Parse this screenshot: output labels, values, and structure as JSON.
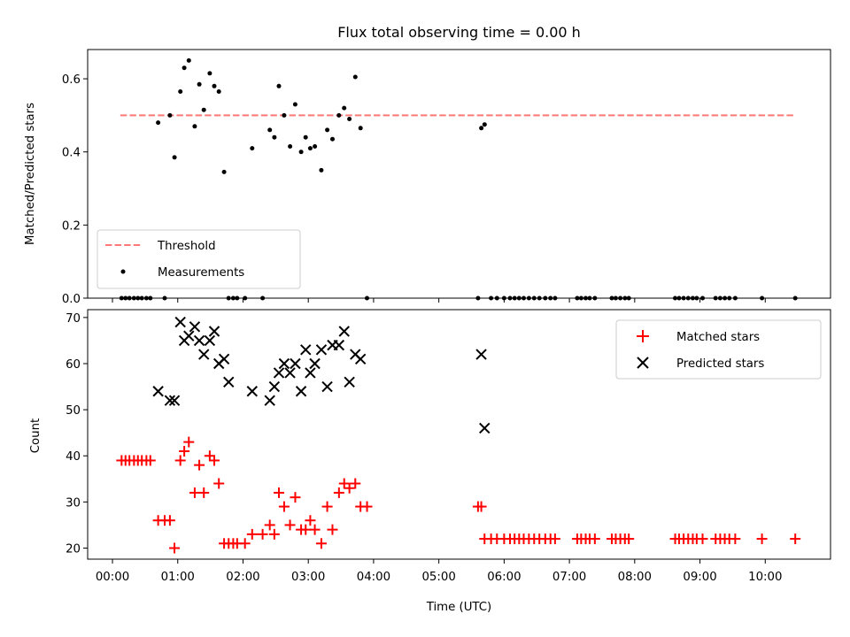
{
  "chart_data": [
    {
      "type": "scatter",
      "title": "Flux total observing time = 0.00 h",
      "xlabel": "",
      "ylabel": "Matched/Predicted stars",
      "xlim": [
        -0.38,
        11.0
      ],
      "ylim": [
        0.0,
        0.68
      ],
      "yticks": [
        "0.0",
        "0.2",
        "0.4",
        "0.6"
      ],
      "ytick_values": [
        0.0,
        0.2,
        0.4,
        0.6
      ],
      "grid": false,
      "legend_position": "lower-left",
      "threshold": {
        "name": "Threshold",
        "value": 0.5,
        "x_range": [
          0.12,
          10.45
        ],
        "color": "#ff7777"
      },
      "series": [
        {
          "name": "Measurements",
          "color": "#000000",
          "x": [
            0.14,
            0.2,
            0.26,
            0.33,
            0.39,
            0.45,
            0.52,
            0.58,
            0.7,
            0.8,
            0.88,
            0.95,
            1.04,
            1.1,
            1.17,
            1.26,
            1.33,
            1.4,
            1.49,
            1.56,
            1.63,
            1.71,
            1.78,
            1.85,
            1.91,
            2.03,
            2.14,
            2.3,
            2.41,
            2.48,
            2.55,
            2.63,
            2.72,
            2.8,
            2.89,
            2.96,
            3.03,
            3.1,
            3.2,
            3.29,
            3.37,
            3.47,
            3.55,
            3.63,
            3.72,
            3.8,
            3.9,
            5.6,
            5.65,
            5.7,
            5.8,
            5.89,
            6.0,
            6.09,
            6.16,
            6.23,
            6.3,
            6.38,
            6.46,
            6.54,
            6.63,
            6.71,
            6.78,
            7.12,
            7.18,
            7.25,
            7.31,
            7.39,
            7.65,
            7.71,
            7.78,
            7.85,
            7.91,
            8.62,
            8.68,
            8.75,
            8.82,
            8.89,
            8.95,
            9.04,
            9.24,
            9.31,
            9.38,
            9.45,
            9.54,
            9.95,
            10.46
          ],
          "y": [
            0.0,
            0.0,
            0.0,
            0.0,
            0.0,
            0.0,
            0.0,
            0.0,
            0.48,
            0.0,
            0.5,
            0.385,
            0.565,
            0.63,
            0.65,
            0.47,
            0.585,
            0.515,
            0.615,
            0.58,
            0.565,
            0.345,
            0.0,
            0.0,
            0.0,
            0.0,
            0.41,
            0.0,
            0.46,
            0.44,
            0.58,
            0.5,
            0.415,
            0.53,
            0.4,
            0.44,
            0.41,
            0.415,
            0.35,
            0.46,
            0.435,
            0.5,
            0.52,
            0.49,
            0.605,
            0.465,
            0.0,
            0.0,
            0.465,
            0.475,
            0.0,
            0.0,
            0.0,
            0.0,
            0.0,
            0.0,
            0.0,
            0.0,
            0.0,
            0.0,
            0.0,
            0.0,
            0.0,
            0.0,
            0.0,
            0.0,
            0.0,
            0.0,
            0.0,
            0.0,
            0.0,
            0.0,
            0.0,
            0.0,
            0.0,
            0.0,
            0.0,
            0.0,
            0.0,
            0.0,
            0.0,
            0.0,
            0.0,
            0.0,
            0.0,
            0.0,
            0.0
          ]
        }
      ]
    },
    {
      "type": "scatter",
      "title": "",
      "xlabel": "Time (UTC)",
      "ylabel": "Count",
      "xlim": [
        -0.38,
        11.0
      ],
      "ylim": [
        17.6,
        71.7
      ],
      "yticks": [
        "20",
        "30",
        "40",
        "50",
        "60",
        "70"
      ],
      "ytick_values": [
        20,
        30,
        40,
        50,
        60,
        70
      ],
      "xticks": [
        "00:00",
        "01:00",
        "02:00",
        "03:00",
        "04:00",
        "05:00",
        "06:00",
        "07:00",
        "08:00",
        "09:00",
        "10:00"
      ],
      "xtick_values": [
        0,
        1,
        2,
        3,
        4,
        5,
        6,
        7,
        8,
        9,
        10
      ],
      "grid": false,
      "legend_position": "top-right",
      "series": [
        {
          "name": "Matched stars",
          "marker": "+",
          "color": "#ff0000",
          "x": [
            0.14,
            0.2,
            0.26,
            0.33,
            0.39,
            0.45,
            0.52,
            0.58,
            0.7,
            0.8,
            0.88,
            0.95,
            1.04,
            1.1,
            1.17,
            1.26,
            1.33,
            1.4,
            1.49,
            1.56,
            1.63,
            1.71,
            1.78,
            1.85,
            1.91,
            2.03,
            2.14,
            2.3,
            2.41,
            2.48,
            2.55,
            2.63,
            2.72,
            2.8,
            2.89,
            2.96,
            3.03,
            3.1,
            3.2,
            3.29,
            3.37,
            3.47,
            3.55,
            3.63,
            3.72,
            3.8,
            3.9,
            5.6,
            5.65,
            5.7,
            5.8,
            5.89,
            6.0,
            6.09,
            6.16,
            6.23,
            6.3,
            6.38,
            6.46,
            6.54,
            6.63,
            6.71,
            6.78,
            7.12,
            7.18,
            7.25,
            7.31,
            7.39,
            7.65,
            7.71,
            7.78,
            7.85,
            7.91,
            8.62,
            8.68,
            8.75,
            8.82,
            8.89,
            8.95,
            9.04,
            9.24,
            9.31,
            9.38,
            9.45,
            9.54,
            9.95,
            10.46
          ],
          "y": [
            39,
            39,
            39,
            39,
            39,
            39,
            39,
            39,
            26,
            26,
            26,
            20,
            39,
            41,
            43,
            32,
            38,
            32,
            40,
            39,
            34,
            21,
            21,
            21,
            21,
            21,
            23,
            23,
            25,
            23,
            32,
            29,
            25,
            31,
            24,
            24,
            26,
            24,
            21,
            29,
            24,
            32,
            34,
            33,
            34,
            29,
            29,
            29,
            29,
            22,
            22,
            22,
            22,
            22,
            22,
            22,
            22,
            22,
            22,
            22,
            22,
            22,
            22,
            22,
            22,
            22,
            22,
            22,
            22,
            22,
            22,
            22,
            22,
            22,
            22,
            22,
            22,
            22,
            22,
            22,
            22,
            22,
            22,
            22,
            22,
            22,
            22
          ]
        },
        {
          "name": "Predicted stars",
          "marker": "x",
          "color": "#000000",
          "x": [
            0.7,
            0.88,
            0.95,
            1.04,
            1.1,
            1.17,
            1.26,
            1.33,
            1.4,
            1.49,
            1.56,
            1.63,
            1.71,
            1.78,
            2.14,
            2.41,
            2.48,
            2.55,
            2.63,
            2.72,
            2.8,
            2.89,
            2.96,
            3.03,
            3.1,
            3.2,
            3.29,
            3.37,
            3.47,
            3.55,
            3.63,
            3.72,
            3.8,
            5.65,
            5.7
          ],
          "y": [
            54,
            52,
            52,
            69,
            65,
            66,
            68,
            65,
            62,
            65,
            67,
            60,
            61,
            56,
            54,
            52,
            55,
            58,
            60,
            58,
            60,
            54,
            63,
            58,
            60,
            63,
            55,
            64,
            64,
            67,
            56,
            62,
            61,
            62,
            46
          ]
        }
      ]
    }
  ]
}
